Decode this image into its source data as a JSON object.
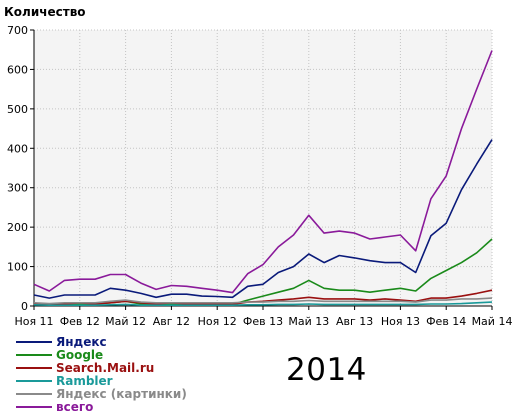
{
  "chart_data": {
    "type": "line",
    "title": "",
    "ylabel": "Количество",
    "xlabel": "",
    "annotation": "2014",
    "ylim": [
      0,
      700
    ],
    "y_ticks": [
      "0",
      "100",
      "200",
      "300",
      "400",
      "500",
      "600",
      "700"
    ],
    "x_tick_labels": [
      "Ноя 11",
      "Фев 12",
      "Май 12",
      "Авг 12",
      "Ноя 12",
      "Фев 13",
      "Май 13",
      "Авг 13",
      "Ноя 13",
      "Фев 14",
      "Май 14"
    ],
    "grid": true,
    "legend_position": "bottom-left",
    "x": [
      "2011-11",
      "2011-12",
      "2012-01",
      "2012-02",
      "2012-03",
      "2012-04",
      "2012-05",
      "2012-06",
      "2012-07",
      "2012-08",
      "2012-09",
      "2012-10",
      "2012-11",
      "2012-12",
      "2013-01",
      "2013-02",
      "2013-03",
      "2013-04",
      "2013-05",
      "2013-06",
      "2013-07",
      "2013-08",
      "2013-09",
      "2013-10",
      "2013-11",
      "2013-12",
      "2014-01",
      "2014-02",
      "2014-03",
      "2014-04",
      "2014-05"
    ],
    "series": [
      {
        "name": "Яндекс",
        "color": "#0a1a7a",
        "values": [
          28,
          20,
          28,
          28,
          28,
          45,
          40,
          32,
          22,
          30,
          30,
          25,
          24,
          22,
          50,
          55,
          85,
          100,
          132,
          110,
          128,
          122,
          115,
          110,
          110,
          85,
          178,
          210,
          295,
          360,
          422
        ]
      },
      {
        "name": "Google",
        "color": "#1a8a1a",
        "values": [
          5,
          3,
          5,
          5,
          5,
          8,
          12,
          5,
          5,
          5,
          5,
          5,
          5,
          4,
          15,
          25,
          35,
          45,
          65,
          45,
          40,
          40,
          35,
          40,
          45,
          38,
          70,
          90,
          110,
          135,
          170
        ]
      },
      {
        "name": "Search.Mail.ru",
        "color": "#9a1010",
        "values": [
          5,
          5,
          5,
          8,
          5,
          8,
          12,
          8,
          5,
          8,
          5,
          5,
          5,
          4,
          10,
          12,
          15,
          18,
          22,
          18,
          18,
          18,
          15,
          18,
          15,
          12,
          20,
          20,
          25,
          32,
          40
        ]
      },
      {
        "name": "Rambler",
        "color": "#1a9a9a",
        "values": [
          3,
          2,
          2,
          2,
          2,
          3,
          4,
          2,
          2,
          2,
          2,
          2,
          2,
          2,
          3,
          3,
          4,
          4,
          5,
          4,
          4,
          4,
          4,
          4,
          4,
          4,
          5,
          5,
          6,
          8,
          10
        ]
      },
      {
        "name": "Яндекс (картинки)",
        "color": "#8a8a8a",
        "values": [
          8,
          6,
          8,
          8,
          8,
          12,
          15,
          10,
          8,
          8,
          8,
          8,
          8,
          8,
          10,
          10,
          12,
          12,
          14,
          12,
          12,
          12,
          12,
          12,
          12,
          10,
          15,
          15,
          18,
          18,
          20
        ]
      },
      {
        "name": "всего",
        "color": "#8a1a9a",
        "values": [
          55,
          38,
          65,
          68,
          68,
          80,
          80,
          58,
          42,
          52,
          50,
          45,
          40,
          34,
          82,
          105,
          150,
          180,
          230,
          185,
          190,
          185,
          170,
          175,
          180,
          140,
          272,
          330,
          450,
          550,
          648
        ]
      }
    ]
  }
}
